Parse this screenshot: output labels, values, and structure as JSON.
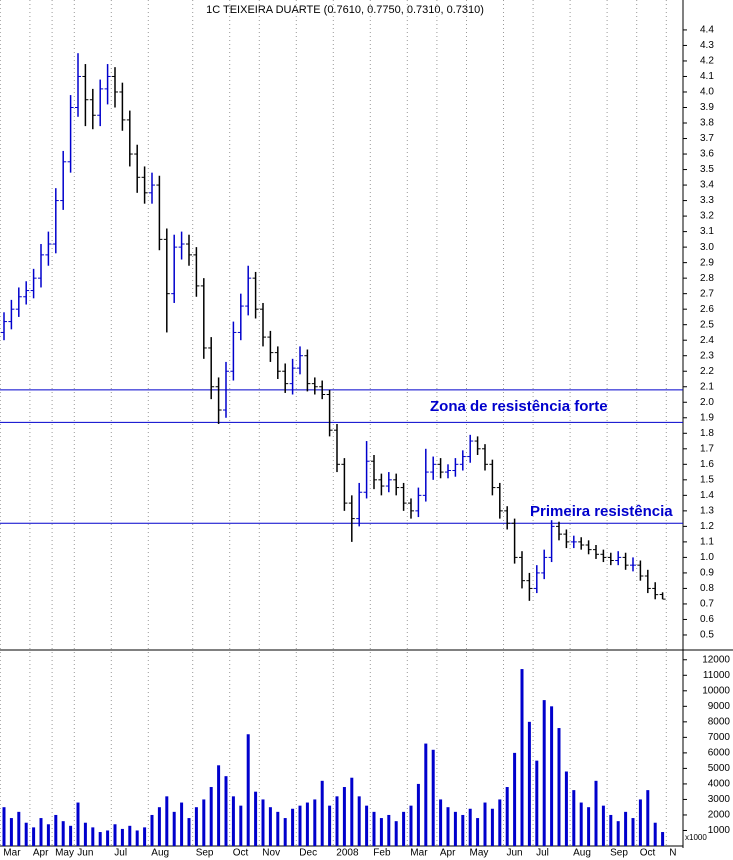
{
  "chart_data": [
    {
      "type": "ohlc",
      "title": "1C TEIXEIRA DUARTE (0.7610, 0.7750, 0.7310, 0.7310)",
      "open": [
        2.45,
        2.52,
        2.6,
        2.68,
        2.72,
        2.8,
        2.95,
        3.02,
        3.3,
        3.55,
        3.9,
        4.1,
        3.95,
        3.85,
        4.02,
        4.1,
        4.0,
        3.82,
        3.6,
        3.45,
        3.35,
        3.4,
        3.05,
        2.7,
        3.0,
        3.02,
        2.95,
        2.75,
        2.35,
        2.1,
        1.95,
        2.2,
        2.45,
        2.62,
        2.8,
        2.6,
        2.42,
        2.32,
        2.2,
        2.12,
        2.22,
        2.3,
        2.12,
        2.1,
        2.05,
        1.82,
        1.6,
        1.35,
        1.25,
        1.42,
        1.62,
        1.5,
        1.46,
        1.5,
        1.45,
        1.35,
        1.3,
        1.4,
        1.55,
        1.6,
        1.55,
        1.56,
        1.6,
        1.65,
        1.75,
        1.7,
        1.6,
        1.45,
        1.3,
        1.22,
        1.0,
        0.85,
        0.8,
        0.9,
        1.0,
        1.2,
        1.15,
        1.1,
        1.1,
        1.08,
        1.05,
        1.02,
        1.0,
        0.98,
        1.0,
        0.95,
        0.95,
        0.88,
        0.8,
        0.761,
        null
      ],
      "high": [
        2.58,
        2.66,
        2.74,
        2.78,
        2.86,
        3.02,
        3.1,
        3.38,
        3.62,
        3.98,
        4.25,
        4.18,
        4.02,
        4.08,
        4.18,
        4.16,
        4.06,
        3.88,
        3.66,
        3.52,
        3.48,
        3.46,
        3.12,
        3.08,
        3.1,
        3.08,
        3.0,
        2.8,
        2.42,
        2.16,
        2.26,
        2.52,
        2.7,
        2.88,
        2.84,
        2.64,
        2.46,
        2.36,
        2.25,
        2.28,
        2.36,
        2.34,
        2.16,
        2.14,
        2.08,
        1.86,
        1.64,
        1.4,
        1.48,
        1.75,
        1.66,
        1.54,
        1.55,
        1.54,
        1.48,
        1.38,
        1.45,
        1.7,
        1.65,
        1.64,
        1.6,
        1.64,
        1.69,
        1.79,
        1.78,
        1.73,
        1.63,
        1.48,
        1.33,
        1.25,
        1.04,
        0.9,
        0.95,
        1.05,
        1.24,
        1.23,
        1.18,
        1.14,
        1.13,
        1.11,
        1.08,
        1.05,
        1.03,
        1.04,
        1.03,
        1.0,
        0.98,
        0.92,
        0.84,
        0.775,
        null
      ],
      "low": [
        2.4,
        2.47,
        2.55,
        2.63,
        2.67,
        2.74,
        2.88,
        2.96,
        3.24,
        3.48,
        3.84,
        3.78,
        3.76,
        3.78,
        3.92,
        3.9,
        3.75,
        3.52,
        3.35,
        3.28,
        3.28,
        2.98,
        2.45,
        2.64,
        2.92,
        2.88,
        2.68,
        2.28,
        2.02,
        1.86,
        1.9,
        2.14,
        2.4,
        2.56,
        2.54,
        2.36,
        2.26,
        2.15,
        2.06,
        2.05,
        2.18,
        2.07,
        2.05,
        2.02,
        1.78,
        1.55,
        1.3,
        1.1,
        1.2,
        1.38,
        1.44,
        1.4,
        1.42,
        1.4,
        1.3,
        1.25,
        1.26,
        1.36,
        1.5,
        1.51,
        1.51,
        1.52,
        1.56,
        1.61,
        1.66,
        1.56,
        1.4,
        1.25,
        1.18,
        0.96,
        0.8,
        0.72,
        0.77,
        0.86,
        0.97,
        1.11,
        1.06,
        1.06,
        1.05,
        1.02,
        0.99,
        0.97,
        0.95,
        0.95,
        0.92,
        0.91,
        0.85,
        0.77,
        0.73,
        0.731,
        null
      ],
      "close": [
        2.52,
        2.6,
        2.68,
        2.72,
        2.8,
        2.95,
        3.02,
        3.3,
        3.55,
        3.9,
        4.1,
        3.95,
        3.85,
        4.02,
        4.1,
        4.0,
        3.82,
        3.6,
        3.45,
        3.35,
        3.4,
        3.05,
        2.7,
        3.0,
        3.02,
        2.95,
        2.75,
        2.35,
        2.1,
        1.95,
        2.2,
        2.45,
        2.62,
        2.8,
        2.6,
        2.42,
        2.32,
        2.2,
        2.12,
        2.22,
        2.3,
        2.12,
        2.1,
        2.05,
        1.82,
        1.6,
        1.35,
        1.25,
        1.42,
        1.62,
        1.5,
        1.46,
        1.5,
        1.45,
        1.35,
        1.3,
        1.4,
        1.55,
        1.6,
        1.55,
        1.56,
        1.6,
        1.65,
        1.75,
        1.7,
        1.6,
        1.45,
        1.3,
        1.22,
        1.0,
        0.85,
        0.8,
        0.9,
        1.0,
        1.2,
        1.15,
        1.1,
        1.1,
        1.08,
        1.05,
        1.02,
        1.0,
        0.98,
        1.0,
        0.95,
        0.95,
        0.88,
        0.8,
        0.76,
        0.731,
        null
      ],
      "up_color": "#0000cc",
      "down_color": "#000000",
      "ylim": [
        0.416,
        4.58
      ],
      "yticks": [
        0.5,
        0.6,
        0.7,
        0.8,
        0.9,
        {
          "value": 1.0,
          "label": "1.0"
        },
        1.1,
        1.2,
        1.3,
        1.4,
        1.5,
        1.6,
        1.7,
        1.8,
        1.9,
        {
          "value": 2.0,
          "label": "2.0"
        },
        2.1,
        2.2,
        2.3,
        2.4,
        2.5,
        2.6,
        2.7,
        2.8,
        2.9,
        {
          "value": 3.0,
          "label": "3.0"
        },
        3.1,
        3.2,
        3.3,
        3.4,
        3.5,
        3.6,
        3.7,
        3.8,
        3.9,
        {
          "value": 4.0,
          "label": "4.0"
        },
        4.1,
        4.2,
        4.3,
        4.4
      ],
      "hlines": [
        2.08,
        1.87,
        1.22
      ],
      "hline_color": "#0000cc",
      "annotations": [
        "Zona de resistência forte",
        "Primeira resistência"
      ]
    },
    {
      "type": "bar",
      "categories": [
        "Mar",
        null,
        null,
        null,
        "Apr",
        null,
        null,
        "May",
        null,
        null,
        "Jun",
        null,
        null,
        null,
        null,
        "Jul",
        null,
        null,
        null,
        null,
        "Aug",
        null,
        null,
        null,
        null,
        null,
        "Sep",
        null,
        null,
        null,
        null,
        "Oct",
        null,
        null,
        null,
        "Nov",
        null,
        null,
        null,
        null,
        "Dec",
        null,
        null,
        null,
        null,
        "2008",
        null,
        null,
        null,
        null,
        "Feb",
        null,
        null,
        null,
        null,
        "Mar",
        null,
        null,
        null,
        "Apr",
        null,
        null,
        null,
        "May",
        null,
        null,
        null,
        null,
        "Jun",
        null,
        null,
        null,
        "Jul",
        null,
        null,
        null,
        null,
        "Aug",
        null,
        null,
        null,
        null,
        "Sep",
        null,
        null,
        null,
        "Oct",
        null,
        null,
        null,
        "N"
      ],
      "values": [
        2500,
        1800,
        2200,
        1500,
        1200,
        1800,
        1400,
        2000,
        1600,
        1300,
        2800,
        1500,
        1200,
        900,
        1000,
        1400,
        1100,
        1300,
        1000,
        1200,
        2000,
        2500,
        3200,
        2200,
        2800,
        1800,
        2500,
        3000,
        3800,
        5200,
        4500,
        3200,
        2600,
        7200,
        3500,
        3000,
        2500,
        2200,
        1800,
        2400,
        2600,
        2800,
        3000,
        4200,
        2600,
        3200,
        3800,
        4400,
        3200,
        2600,
        2200,
        1800,
        2000,
        1600,
        2200,
        2600,
        4000,
        6600,
        6200,
        3000,
        2500,
        2200,
        2000,
        2400,
        1800,
        2800,
        2400,
        3000,
        3800,
        6000,
        11400,
        8000,
        5500,
        9400,
        9000,
        7600,
        4800,
        3600,
        2800,
        2500,
        4200,
        2600,
        2000,
        1600,
        2200,
        1800,
        3000,
        3600,
        1500,
        900,
        null
      ],
      "color": "#0000cc",
      "ylim": [
        0,
        12500
      ],
      "yticks": [
        1000,
        2000,
        3000,
        4000,
        5000,
        6000,
        7000,
        8000,
        9000,
        10000,
        11000,
        12000
      ],
      "unit_label": "x1000"
    }
  ]
}
